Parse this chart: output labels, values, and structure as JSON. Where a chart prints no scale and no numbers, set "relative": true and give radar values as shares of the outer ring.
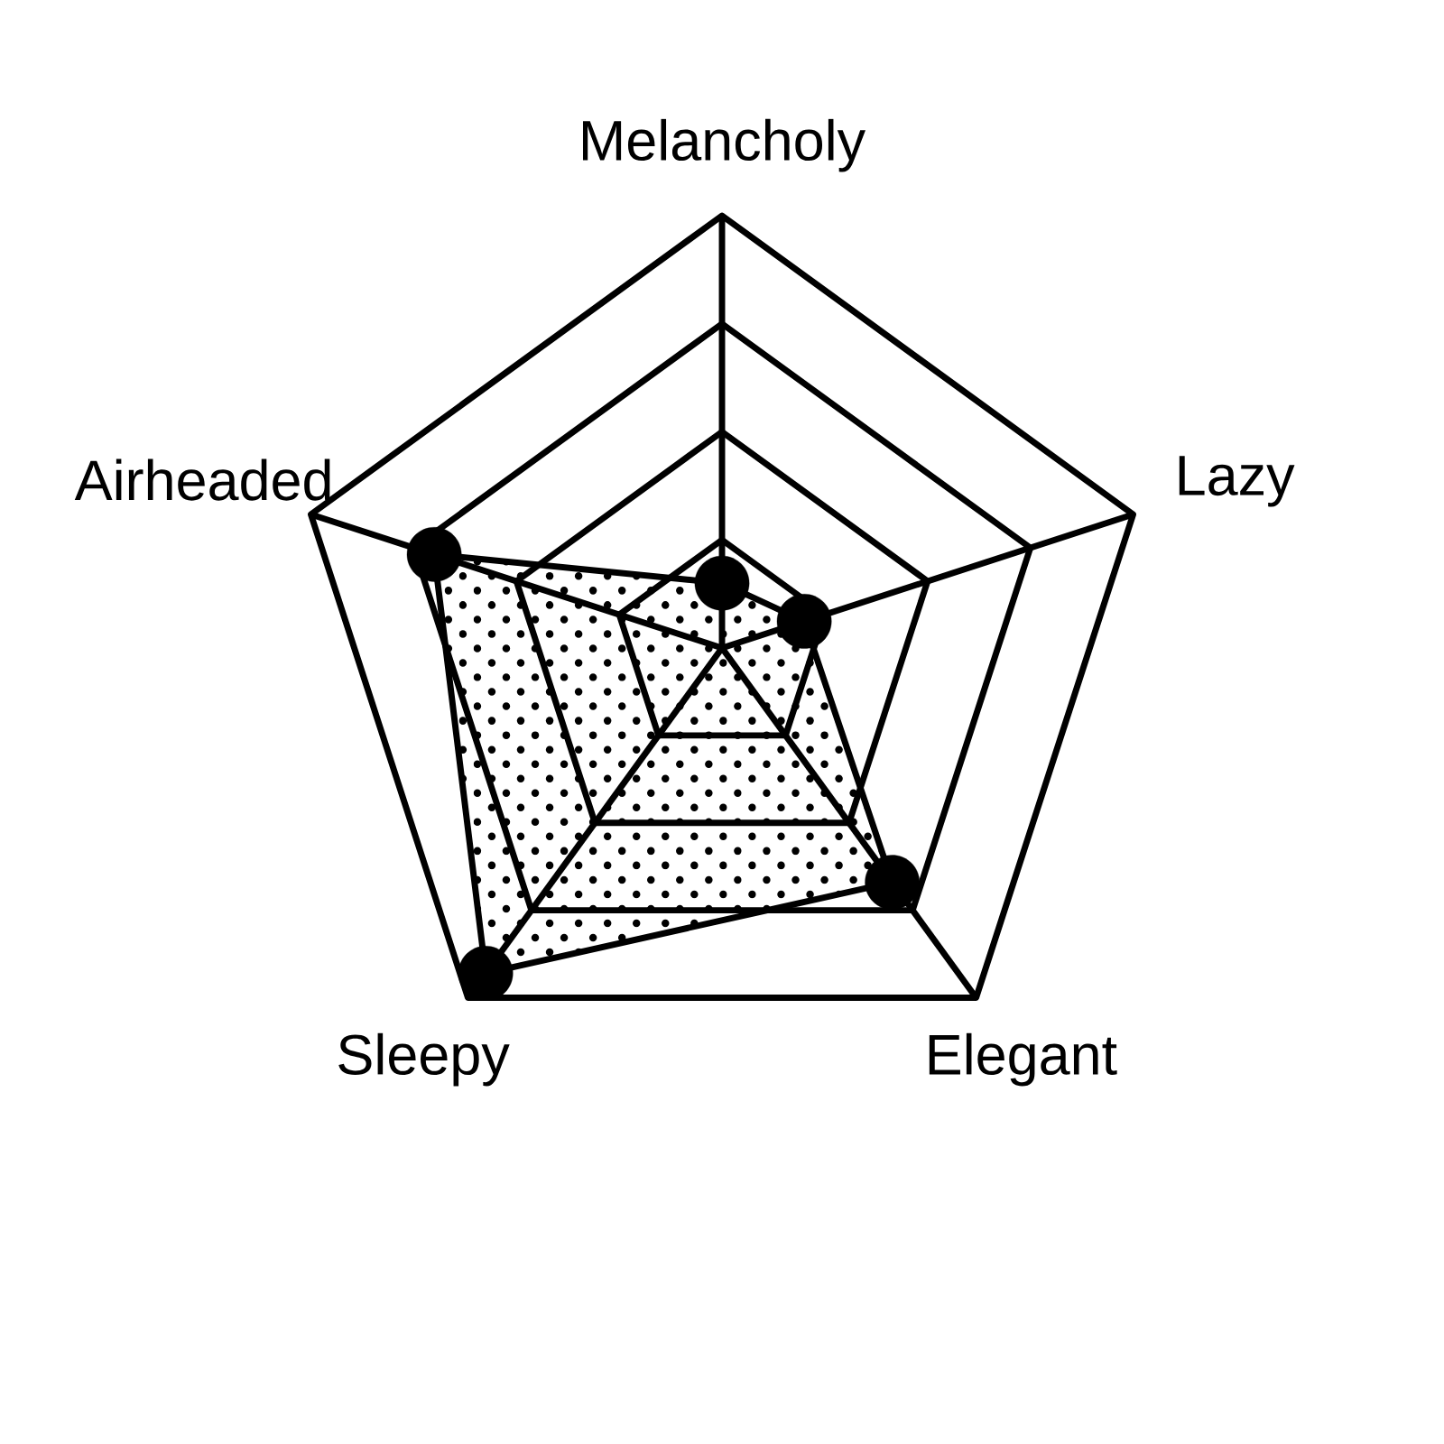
{
  "chart_data": {
    "type": "radar",
    "categories": [
      "Melancholy",
      "Lazy",
      "Elegant",
      "Sleepy",
      "Airheaded"
    ],
    "relative": true,
    "grid": true,
    "marker": "circle",
    "series": [
      {
        "color": "#000000",
        "values": [
          0.15,
          0.2,
          0.67,
          0.93,
          0.7
        ]
      }
    ]
  }
}
